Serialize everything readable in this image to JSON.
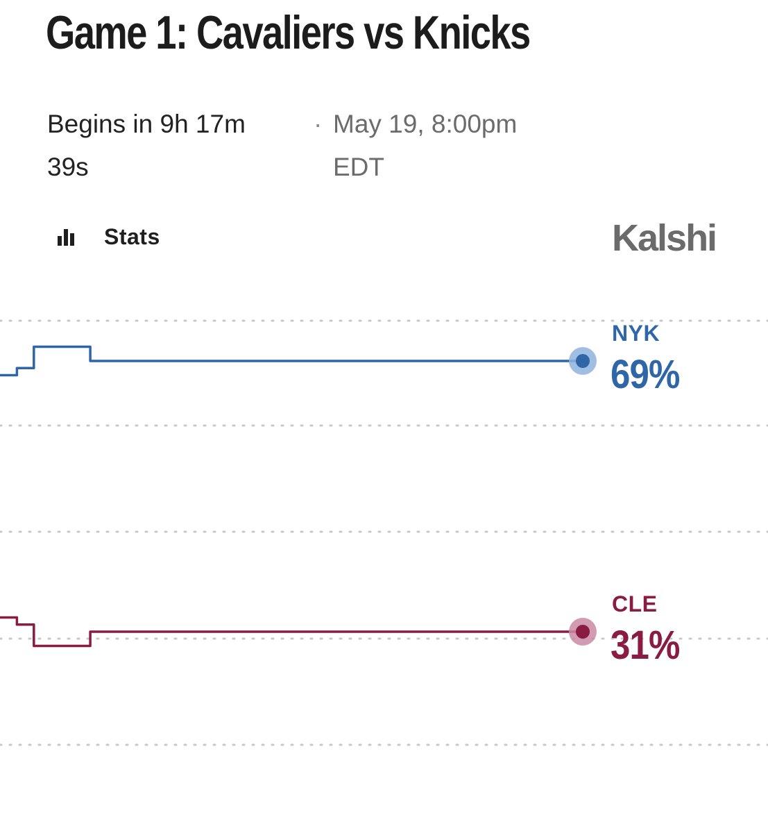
{
  "header": {
    "title": "Game 1: Cavaliers vs Knicks",
    "countdown_line1": "Begins in 9h 17m",
    "countdown_line2": "39s",
    "separator": "·",
    "date_line1": "May 19, 8:00pm",
    "date_line2": "EDT"
  },
  "toolbar": {
    "stats_label": "Stats",
    "stats_icon": "bar-chart-icon",
    "brand": "Kalshi"
  },
  "colors": {
    "nyk": "#2f66a8",
    "nyk_halo": "#8fb3dc",
    "cle": "#8a1c44",
    "cle_halo": "#c98aa3",
    "grid": "#c8c8c8"
  },
  "chart_data": {
    "type": "line",
    "ylim": [
      0,
      100
    ],
    "grid": true,
    "series": [
      {
        "name": "NYK",
        "label": "69%",
        "current": 69,
        "values": [
          67,
          67,
          67,
          68,
          68,
          68,
          71,
          71,
          71,
          71,
          71,
          71,
          71,
          71,
          71,
          71,
          69,
          69,
          69,
          69,
          69,
          69,
          69,
          69,
          69,
          69,
          69,
          69,
          69,
          69,
          69,
          69,
          69,
          69,
          69,
          69,
          69,
          69,
          69,
          69,
          69,
          69,
          69,
          69,
          69,
          69,
          69,
          69,
          69,
          69,
          69,
          69,
          69,
          69,
          69,
          69,
          69,
          69,
          69,
          69,
          69,
          69,
          69,
          69,
          69,
          69,
          69,
          69,
          69,
          69,
          69,
          69,
          69,
          69,
          69,
          69,
          69,
          69,
          69,
          69,
          69,
          69,
          69,
          69,
          69,
          69,
          69,
          69,
          69,
          69,
          69,
          69,
          69,
          69,
          69,
          69,
          69,
          69,
          69,
          69
        ]
      },
      {
        "name": "CLE",
        "label": "31%",
        "current": 31,
        "values": [
          33,
          33,
          33,
          32,
          32,
          32,
          29,
          29,
          29,
          29,
          29,
          29,
          29,
          29,
          29,
          29,
          31,
          31,
          31,
          31,
          31,
          31,
          31,
          31,
          31,
          31,
          31,
          31,
          31,
          31,
          31,
          31,
          31,
          31,
          31,
          31,
          31,
          31,
          31,
          31,
          31,
          31,
          31,
          31,
          31,
          31,
          31,
          31,
          31,
          31,
          31,
          31,
          31,
          31,
          31,
          31,
          31,
          31,
          31,
          31,
          31,
          31,
          31,
          31,
          31,
          31,
          31,
          31,
          31,
          31,
          31,
          31,
          31,
          31,
          31,
          31,
          31,
          31,
          31,
          31,
          31,
          31,
          31,
          31,
          31,
          31,
          31,
          31,
          31,
          31,
          31,
          31,
          31,
          31,
          31,
          31,
          31,
          31,
          31,
          31
        ]
      }
    ]
  }
}
